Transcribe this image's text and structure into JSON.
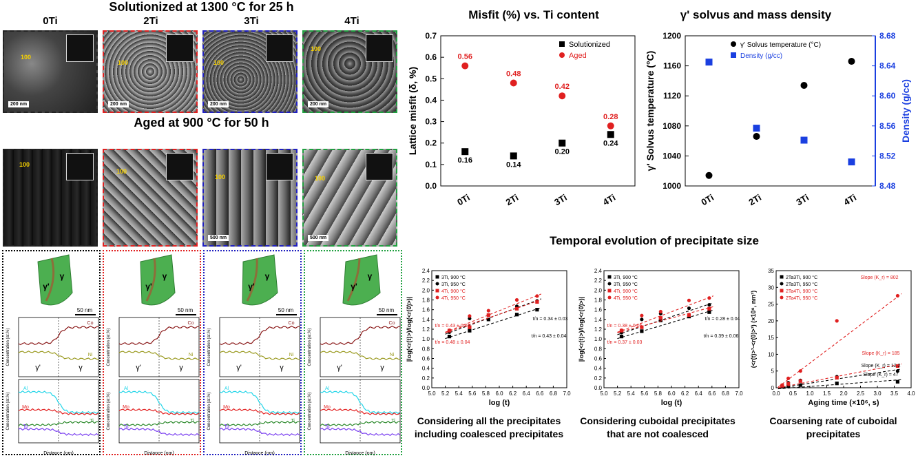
{
  "left": {
    "solutionized_title": "Solutionized at 1300 °C for 25 h",
    "aged_title": "Aged at 900 °C for 50 h",
    "columns": [
      {
        "name": "0Ti",
        "color": "#000000",
        "arrow": "100",
        "sol_scale": "200 nm",
        "aged_scale": ""
      },
      {
        "name": "2Ti",
        "color": "#e02020",
        "arrow": "100",
        "sol_scale": "200 nm",
        "aged_scale": ""
      },
      {
        "name": "3Ti",
        "color": "#2020c0",
        "arrow": "100",
        "sol_scale": "200 nm",
        "aged_scale": "500 nm"
      },
      {
        "name": "4Ti",
        "color": "#20a040",
        "arrow": "100",
        "sol_scale": "200 nm",
        "aged_scale": "500 nm"
      }
    ],
    "apt": {
      "scale": "50 nm",
      "gamma": "γ",
      "gamma_prime": "γ'",
      "ylabel": "Concentration (at.%)",
      "xlabel": "Distance (nm)",
      "elements_top": [
        "Co",
        "Ni"
      ],
      "elements_bottom": [
        "Al",
        "Mo",
        "Ti",
        "Ta"
      ]
    }
  },
  "misfit_chart": {
    "title": "Misfit (%) vs. Ti content",
    "ylabel": "Lattice misfit (δ, %)",
    "chart_data": {
      "type": "scatter",
      "categories": [
        "0Ti",
        "2Ti",
        "3Ti",
        "4Ti"
      ],
      "series": [
        {
          "name": "Solutionized",
          "color": "#000000",
          "marker": "square",
          "values": [
            0.16,
            0.14,
            0.2,
            0.24
          ],
          "labels": [
            "0.16",
            "0.14",
            "0.20",
            "0.24"
          ]
        },
        {
          "name": "Aged",
          "color": "#e02020",
          "marker": "circle",
          "values": [
            0.56,
            0.48,
            0.42,
            0.28
          ],
          "labels": [
            "0.56",
            "0.48",
            "0.42",
            "0.28"
          ]
        }
      ],
      "ylim": [
        0.0,
        0.7
      ],
      "yticks": [
        "0.0",
        "0.1",
        "0.2",
        "0.3",
        "0.4",
        "0.5",
        "0.6",
        "0.7"
      ]
    }
  },
  "solvus_chart": {
    "title": "γ' solvus and mass density",
    "ylabel_left": "γ' Solvus temperature (°C)",
    "ylabel_right": "Density (g/cc)",
    "chart_data": {
      "type": "scatter",
      "categories": [
        "0Ti",
        "2Ti",
        "3Ti",
        "4Ti"
      ],
      "series": [
        {
          "name": "γ' Solvus temperature (°C)",
          "color": "#000000",
          "marker": "circle",
          "axis": "left",
          "values": [
            1014,
            1066,
            1134,
            1166
          ]
        },
        {
          "name": "Density (g/cc)",
          "color": "#1a3fe0",
          "marker": "square",
          "axis": "right",
          "values": [
            8.645,
            8.557,
            8.541,
            8.512
          ]
        }
      ],
      "ylim_left": [
        1000,
        1200
      ],
      "yticks_left": [
        "1000",
        "1040",
        "1080",
        "1120",
        "1160",
        "1200"
      ],
      "ylim_right": [
        8.48,
        8.68
      ],
      "yticks_right": [
        "8.48",
        "8.52",
        "8.56",
        "8.60",
        "8.64",
        "8.68"
      ]
    }
  },
  "temporal": {
    "title": "Temporal evolution of precipitate size",
    "charts": [
      {
        "caption": "Considering all the precipitates including coalesced precipitates",
        "ylabel": "|log(<r(t)>)/log(<r(0)>)|",
        "xlabel": "log (t)",
        "chart_data": {
          "type": "scatter",
          "xlim": [
            5.0,
            7.0
          ],
          "ylim": [
            0.0,
            2.4
          ],
          "xticks": [
            "5.0",
            "5.2",
            "5.4",
            "5.6",
            "5.8",
            "6.0",
            "6.2",
            "6.4",
            "6.6",
            "6.8",
            "7.0"
          ],
          "yticks": [
            "0.0",
            "0.2",
            "0.4",
            "0.6",
            "0.8",
            "1.0",
            "1.2",
            "1.4",
            "1.6",
            "1.8",
            "2.0",
            "2.2",
            "2.4"
          ],
          "series": [
            {
              "name": "3Ti, 900 °C",
              "color": "#000000",
              "marker": "square",
              "x": [
                5.26,
                5.56,
                5.84,
                6.26,
                6.56
              ],
              "y": [
                1.05,
                1.17,
                1.4,
                1.5,
                1.6
              ]
            },
            {
              "name": "3Ti, 950 °C",
              "color": "#000000",
              "marker": "circle",
              "x": [
                5.26,
                5.56,
                5.84,
                6.26,
                6.56
              ],
              "y": [
                1.14,
                1.42,
                1.49,
                1.67,
                1.78
              ]
            },
            {
              "name": "4Ti, 900 °C",
              "color": "#e02020",
              "marker": "square",
              "x": [
                5.26,
                5.56,
                5.84,
                6.26,
                6.56
              ],
              "y": [
                1.17,
                1.24,
                1.49,
                1.62,
                1.76
              ]
            },
            {
              "name": "4Ti, 950 °C",
              "color": "#e02020",
              "marker": "circle",
              "x": [
                5.26,
                5.56,
                5.84,
                6.26,
                6.56
              ],
              "y": [
                1.18,
                1.47,
                1.58,
                1.8,
                1.88
              ]
            }
          ],
          "annotations": [
            "t/n = 0.43 ± 0.04",
            "t/n = 0.48 ± 0.04",
            "t/n = 0.34 ± 0.03",
            "t/n = 0.43 ± 0.04"
          ]
        }
      },
      {
        "caption": "Considering cuboidal precipitates that are not coalesced",
        "ylabel": "|log(<r(t)>)/log(<r(0)>)|",
        "xlabel": "log (t)",
        "chart_data": {
          "type": "scatter",
          "xlim": [
            5.0,
            7.0
          ],
          "ylim": [
            0.0,
            2.4
          ],
          "xticks": [
            "5.0",
            "5.2",
            "5.4",
            "5.6",
            "5.8",
            "6.0",
            "6.2",
            "6.4",
            "6.6",
            "6.8",
            "7.0"
          ],
          "yticks": [
            "0.0",
            "0.2",
            "0.4",
            "0.6",
            "0.8",
            "1.0",
            "1.2",
            "1.4",
            "1.6",
            "1.8",
            "2.0",
            "2.2",
            "2.4"
          ],
          "series": [
            {
              "name": "3Ti, 900 °C",
              "color": "#000000",
              "marker": "square",
              "x": [
                5.26,
                5.56,
                5.84,
                6.26,
                6.56
              ],
              "y": [
                1.05,
                1.16,
                1.38,
                1.46,
                1.55
              ]
            },
            {
              "name": "3Ti, 950 °C",
              "color": "#000000",
              "marker": "circle",
              "x": [
                5.26,
                5.56,
                5.84,
                6.26,
                6.56
              ],
              "y": [
                1.13,
                1.4,
                1.52,
                1.63,
                1.7
              ]
            },
            {
              "name": "4Ti, 900 °C",
              "color": "#e02020",
              "marker": "square",
              "x": [
                5.26,
                5.56,
                5.84,
                6.26,
                6.56
              ],
              "y": [
                1.17,
                1.24,
                1.43,
                1.49,
                1.62
              ]
            },
            {
              "name": "4Ti, 950 °C",
              "color": "#e02020",
              "marker": "circle",
              "x": [
                5.26,
                5.56,
                5.84,
                6.26,
                6.56
              ],
              "y": [
                1.18,
                1.48,
                1.56,
                1.79,
                1.84
              ]
            }
          ],
          "annotations": [
            "t/n = 0.38 ± 0.05",
            "t/n = 0.37 ± 0.03",
            "t/n = 0.28 ± 0.04",
            "t/n = 0.39 ± 0.06"
          ]
        }
      },
      {
        "caption": "Coarsening rate of cuboidal precipitates",
        "ylabel": "(<r(t)>³-<r(0)>³) (×10⁸, nm³)",
        "xlabel": "Aging time (×10⁶, s)",
        "chart_data": {
          "type": "scatter",
          "xlim": [
            0.0,
            4.0
          ],
          "ylim": [
            0,
            35
          ],
          "xticks": [
            "0.0",
            "0.5",
            "1.0",
            "1.5",
            "2.0",
            "2.5",
            "3.0",
            "3.5",
            "4.0"
          ],
          "yticks": [
            "0",
            "5",
            "10",
            "15",
            "20",
            "25",
            "30",
            "35"
          ],
          "series": [
            {
              "name": "2Ta3Ti, 900 °C",
              "color": "#000000",
              "marker": "square",
              "x": [
                0.18,
                0.36,
                0.72,
                1.8,
                3.6
              ],
              "y": [
                0.3,
                0.6,
                0.8,
                1.3,
                1.8
              ]
            },
            {
              "name": "2Ta3Ti, 950 °C",
              "color": "#000000",
              "marker": "circle",
              "x": [
                0.18,
                0.36,
                0.72,
                1.8,
                3.6
              ],
              "y": [
                0.5,
                1.5,
                2.2,
                3.3,
                5.0
              ]
            },
            {
              "name": "2Ta4Ti, 900 °C",
              "color": "#e02020",
              "marker": "square",
              "x": [
                0.18,
                0.36,
                0.72,
                1.8,
                3.6
              ],
              "y": [
                0.6,
                1.2,
                2.0,
                3.0,
                6.5
              ]
            },
            {
              "name": "2Ta4Ti, 950 °C",
              "color": "#e02020",
              "marker": "circle",
              "x": [
                0.18,
                0.36,
                0.72,
                1.8,
                3.6
              ],
              "y": [
                0.8,
                2.8,
                5.0,
                20.0,
                27.5
              ]
            }
          ],
          "annotations": [
            "Slope (K_r) = 802",
            "Slope (K_r) = 185",
            "Slope (K_r) = 12.2",
            "Slope (K_r) = 47"
          ]
        }
      }
    ]
  }
}
